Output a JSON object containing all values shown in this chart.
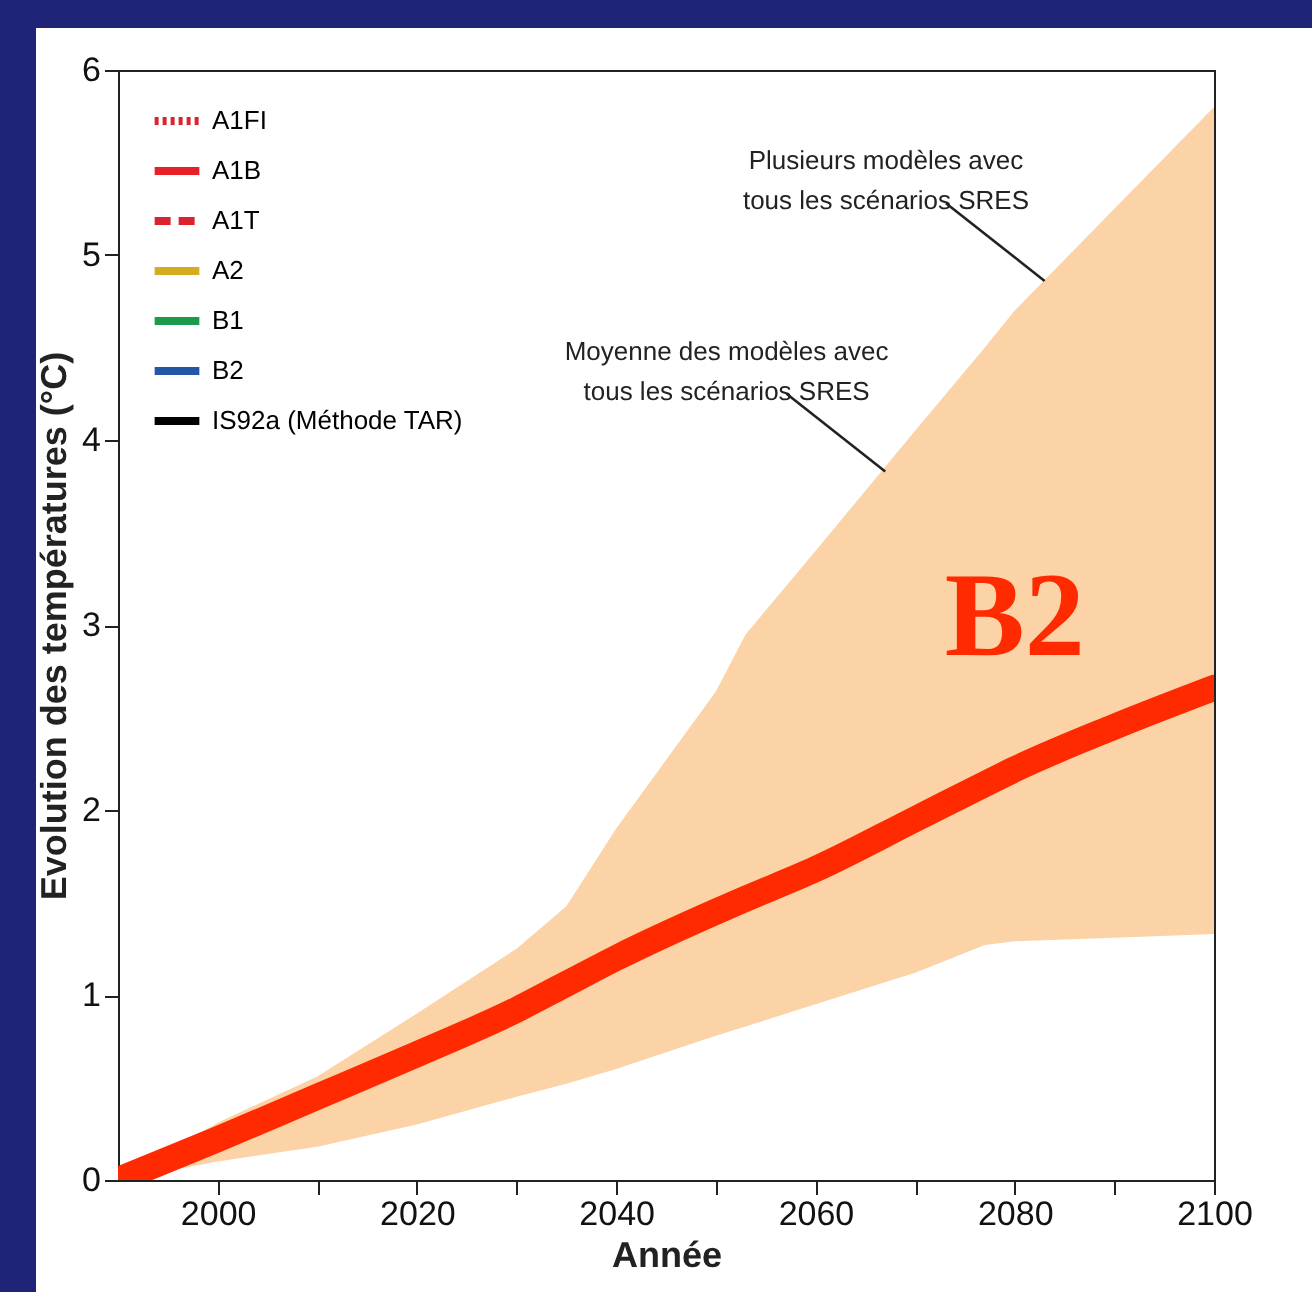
{
  "chart_data": {
    "type": "line",
    "xlabel": "Année",
    "ylabel": "Evolution des températures (°C)",
    "x": [
      1990,
      2000,
      2010,
      2020,
      2030,
      2035,
      2040,
      2050,
      2053,
      2060,
      2070,
      2077,
      2080,
      2090,
      2100
    ],
    "xlim": [
      1990,
      2100
    ],
    "xticks": [
      2000,
      {
        "value": 2010,
        "label": null
      },
      2020,
      {
        "value": 2030,
        "label": null
      },
      2040,
      {
        "value": 2050,
        "label": null
      },
      2060,
      {
        "value": 2070,
        "label": null
      },
      2080,
      {
        "value": 2090,
        "label": null
      },
      2100
    ],
    "ylim": [
      0,
      6
    ],
    "yticks": [
      0,
      1,
      2,
      3,
      4,
      5,
      6
    ],
    "grid": false,
    "legend": "top left",
    "series": [
      {
        "name": "A1FI",
        "color": "#d9232e",
        "line_style": "dotted",
        "values": [
          null,
          null,
          null,
          null,
          null,
          null,
          null,
          null,
          null,
          null,
          null,
          null,
          null,
          null,
          null
        ]
      },
      {
        "name": "A1B",
        "color": "#e8202a",
        "values": [
          null,
          null,
          null,
          null,
          null,
          null,
          null,
          null,
          null,
          null,
          null,
          null,
          null,
          null,
          null
        ]
      },
      {
        "name": "A1T",
        "color": "#d9232e",
        "line_style": "dashed",
        "values": [
          null,
          null,
          null,
          null,
          null,
          null,
          null,
          null,
          null,
          null,
          null,
          null,
          null,
          null,
          null
        ]
      },
      {
        "name": "A2",
        "color": "#d4ad1e",
        "values": [
          null,
          null,
          null,
          null,
          null,
          null,
          null,
          null,
          null,
          null,
          null,
          null,
          null,
          null,
          null
        ]
      },
      {
        "name": "B1",
        "color": "#1a9a4a",
        "values": [
          null,
          null,
          null,
          null,
          null,
          null,
          null,
          null,
          null,
          null,
          null,
          null,
          null,
          null,
          null
        ]
      },
      {
        "name": "B2",
        "color": "#2456a6",
        "values": [
          null,
          null,
          null,
          null,
          null,
          null,
          null,
          null,
          null,
          null,
          null,
          null,
          null,
          null,
          null
        ]
      },
      {
        "name": "IS92a (Méthode TAR)",
        "color": "#000000",
        "values": [
          null,
          null,
          null,
          null,
          null,
          null,
          null,
          null,
          null,
          null,
          null,
          null,
          null,
          null,
          null
        ]
      },
      {
        "name": "B2",
        "color": "#ff2a00",
        "values": [
          0,
          0.22,
          0.45,
          0.68,
          0.92,
          1.06,
          1.2,
          1.45,
          1.52,
          1.68,
          1.95,
          2.14,
          2.22,
          2.45,
          2.66
        ],
        "lower": [
          0,
          0.1,
          0.18,
          0.3,
          0.45,
          0.52,
          0.6,
          0.78,
          0.83,
          0.95,
          1.12,
          1.27,
          1.29,
          1.31,
          1.33
        ],
        "upper": [
          0,
          0.31,
          0.56,
          0.9,
          1.25,
          1.48,
          1.9,
          2.64,
          2.95,
          3.4,
          4.05,
          4.5,
          4.7,
          5.25,
          5.8
        ]
      }
    ],
    "annotations": [
      {
        "text": "Plusieurs modèles avec\ntous les scénarios SRES",
        "x": 2083,
        "y": 4.86
      },
      {
        "text": "Moyenne des modèles avec\ntous les scénarios SRES",
        "x": 2067,
        "y": 3.83
      }
    ]
  }
}
